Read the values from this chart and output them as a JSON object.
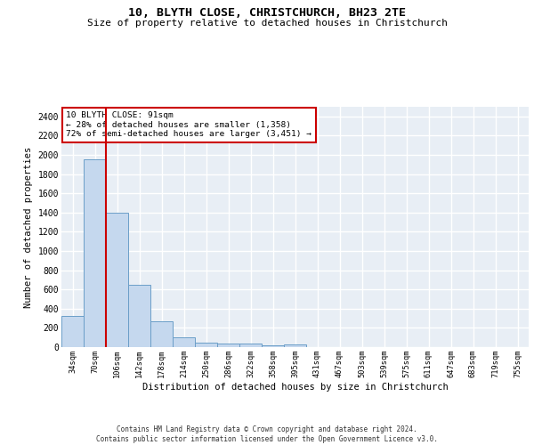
{
  "title": "10, BLYTH CLOSE, CHRISTCHURCH, BH23 2TE",
  "subtitle": "Size of property relative to detached houses in Christchurch",
  "xlabel": "Distribution of detached houses by size in Christchurch",
  "ylabel": "Number of detached properties",
  "categories": [
    "34sqm",
    "70sqm",
    "106sqm",
    "142sqm",
    "178sqm",
    "214sqm",
    "250sqm",
    "286sqm",
    "322sqm",
    "358sqm",
    "395sqm",
    "431sqm",
    "467sqm",
    "503sqm",
    "539sqm",
    "575sqm",
    "611sqm",
    "647sqm",
    "683sqm",
    "719sqm",
    "755sqm"
  ],
  "values": [
    320,
    1950,
    1400,
    650,
    270,
    100,
    45,
    38,
    35,
    22,
    30,
    0,
    0,
    0,
    0,
    0,
    0,
    0,
    0,
    0,
    0
  ],
  "bar_color": "#c5d8ee",
  "bar_edge_color": "#6b9ec8",
  "property_sqm": 91,
  "pct_smaller": 28,
  "count_smaller": 1358,
  "pct_semi_larger": 72,
  "count_semi_larger": 3451,
  "annotation_box_color": "#cc0000",
  "ylim": [
    0,
    2500
  ],
  "yticks": [
    0,
    200,
    400,
    600,
    800,
    1000,
    1200,
    1400,
    1600,
    1800,
    2000,
    2200,
    2400
  ],
  "bg_color": "#e8eef5",
  "grid_color": "#ffffff",
  "footer_line1": "Contains HM Land Registry data © Crown copyright and database right 2024.",
  "footer_line2": "Contains public sector information licensed under the Open Government Licence v3.0."
}
